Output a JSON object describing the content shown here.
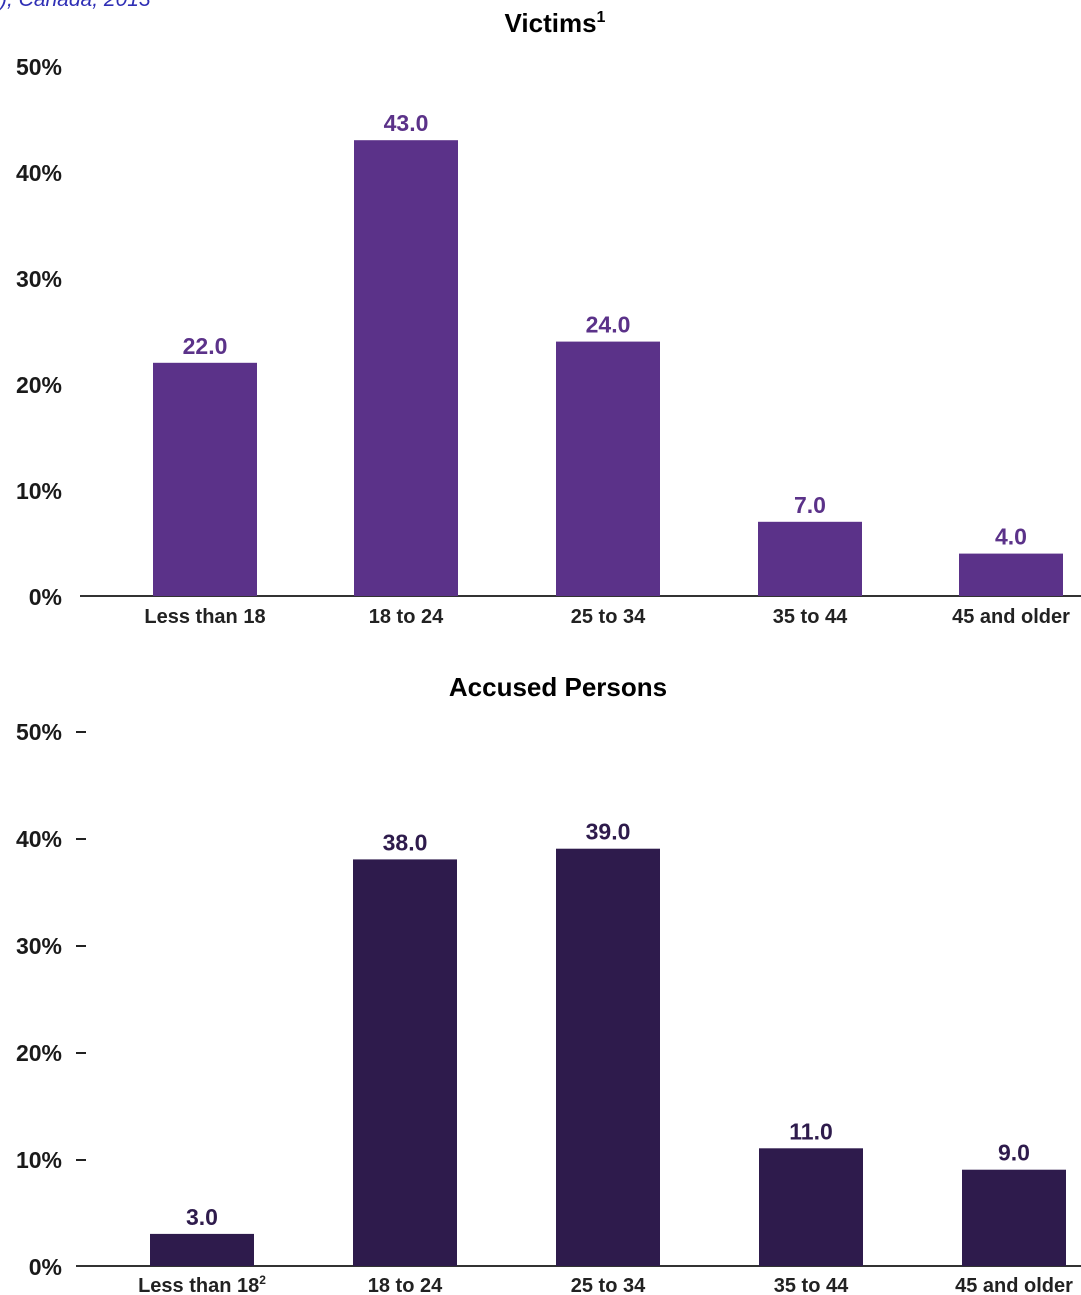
{
  "header_fragment": "), Canada, 2013",
  "chart_data": [
    {
      "type": "bar",
      "title": "Victims",
      "title_superscript": "1",
      "categories": [
        "Less than 18",
        "18 to 24",
        "25 to 34",
        "35 to 44",
        "45 and older"
      ],
      "category_superscripts": [
        "",
        "",
        "",
        "",
        ""
      ],
      "values": [
        22.0,
        43.0,
        24.0,
        7.0,
        4.0
      ],
      "value_labels": [
        "22.0",
        "43.0",
        "24.0",
        "7.0",
        "4.0"
      ],
      "ylim": [
        0,
        50
      ],
      "yticks": [
        "0%",
        "10%",
        "20%",
        "30%",
        "40%",
        "50%"
      ],
      "tick_marks": false,
      "color": "#5b3289",
      "label_color": "#5b3289"
    },
    {
      "type": "bar",
      "title": "Accused Persons",
      "title_superscript": "",
      "categories": [
        "Less than 18",
        "18 to 24",
        "25 to 34",
        "35 to 44",
        "45 and older"
      ],
      "category_superscripts": [
        "2",
        "",
        "",
        "",
        ""
      ],
      "values": [
        3.0,
        38.0,
        39.0,
        11.0,
        9.0
      ],
      "value_labels": [
        "3.0",
        "38.0",
        "39.0",
        "11.0",
        "9.0"
      ],
      "ylim": [
        0,
        50
      ],
      "yticks": [
        "0%",
        "10%",
        "20%",
        "30%",
        "40%",
        "50%"
      ],
      "tick_marks": true,
      "color": "#2e1b4c",
      "label_color": "#2e1b4c"
    }
  ]
}
